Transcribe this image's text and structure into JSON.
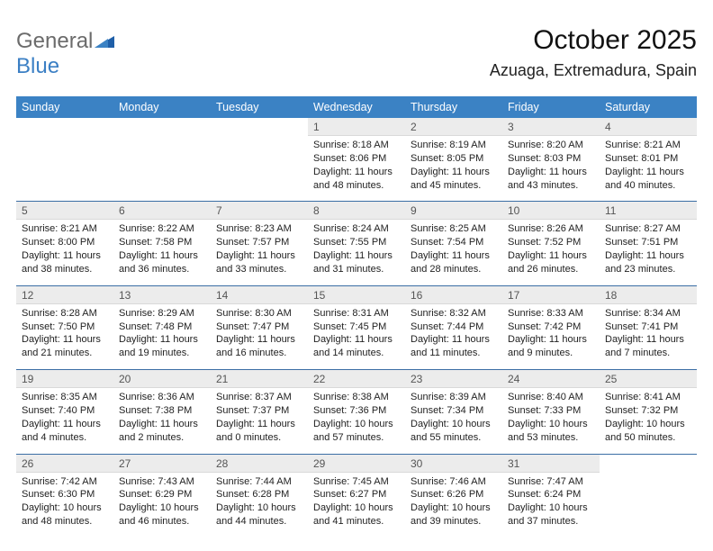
{
  "logo": {
    "word1": "General",
    "word2": "Blue"
  },
  "title": "October 2025",
  "location": "Azuaga, Extremadura, Spain",
  "colors": {
    "header_bg": "#3b82c4",
    "header_text": "#ffffff",
    "daynum_bg": "#ececec",
    "daynum_text": "#555555",
    "week_sep": "#3b6ea5",
    "logo_gray": "#6b6b6b",
    "logo_blue": "#3b7fc4"
  },
  "day_headers": [
    "Sunday",
    "Monday",
    "Tuesday",
    "Wednesday",
    "Thursday",
    "Friday",
    "Saturday"
  ],
  "weeks": [
    {
      "nums": [
        "",
        "",
        "",
        "1",
        "2",
        "3",
        "4"
      ],
      "cells": [
        null,
        null,
        null,
        {
          "sunrise": "Sunrise: 8:18 AM",
          "sunset": "Sunset: 8:06 PM",
          "day1": "Daylight: 11 hours",
          "day2": "and 48 minutes."
        },
        {
          "sunrise": "Sunrise: 8:19 AM",
          "sunset": "Sunset: 8:05 PM",
          "day1": "Daylight: 11 hours",
          "day2": "and 45 minutes."
        },
        {
          "sunrise": "Sunrise: 8:20 AM",
          "sunset": "Sunset: 8:03 PM",
          "day1": "Daylight: 11 hours",
          "day2": "and 43 minutes."
        },
        {
          "sunrise": "Sunrise: 8:21 AM",
          "sunset": "Sunset: 8:01 PM",
          "day1": "Daylight: 11 hours",
          "day2": "and 40 minutes."
        }
      ]
    },
    {
      "nums": [
        "5",
        "6",
        "7",
        "8",
        "9",
        "10",
        "11"
      ],
      "cells": [
        {
          "sunrise": "Sunrise: 8:21 AM",
          "sunset": "Sunset: 8:00 PM",
          "day1": "Daylight: 11 hours",
          "day2": "and 38 minutes."
        },
        {
          "sunrise": "Sunrise: 8:22 AM",
          "sunset": "Sunset: 7:58 PM",
          "day1": "Daylight: 11 hours",
          "day2": "and 36 minutes."
        },
        {
          "sunrise": "Sunrise: 8:23 AM",
          "sunset": "Sunset: 7:57 PM",
          "day1": "Daylight: 11 hours",
          "day2": "and 33 minutes."
        },
        {
          "sunrise": "Sunrise: 8:24 AM",
          "sunset": "Sunset: 7:55 PM",
          "day1": "Daylight: 11 hours",
          "day2": "and 31 minutes."
        },
        {
          "sunrise": "Sunrise: 8:25 AM",
          "sunset": "Sunset: 7:54 PM",
          "day1": "Daylight: 11 hours",
          "day2": "and 28 minutes."
        },
        {
          "sunrise": "Sunrise: 8:26 AM",
          "sunset": "Sunset: 7:52 PM",
          "day1": "Daylight: 11 hours",
          "day2": "and 26 minutes."
        },
        {
          "sunrise": "Sunrise: 8:27 AM",
          "sunset": "Sunset: 7:51 PM",
          "day1": "Daylight: 11 hours",
          "day2": "and 23 minutes."
        }
      ]
    },
    {
      "nums": [
        "12",
        "13",
        "14",
        "15",
        "16",
        "17",
        "18"
      ],
      "cells": [
        {
          "sunrise": "Sunrise: 8:28 AM",
          "sunset": "Sunset: 7:50 PM",
          "day1": "Daylight: 11 hours",
          "day2": "and 21 minutes."
        },
        {
          "sunrise": "Sunrise: 8:29 AM",
          "sunset": "Sunset: 7:48 PM",
          "day1": "Daylight: 11 hours",
          "day2": "and 19 minutes."
        },
        {
          "sunrise": "Sunrise: 8:30 AM",
          "sunset": "Sunset: 7:47 PM",
          "day1": "Daylight: 11 hours",
          "day2": "and 16 minutes."
        },
        {
          "sunrise": "Sunrise: 8:31 AM",
          "sunset": "Sunset: 7:45 PM",
          "day1": "Daylight: 11 hours",
          "day2": "and 14 minutes."
        },
        {
          "sunrise": "Sunrise: 8:32 AM",
          "sunset": "Sunset: 7:44 PM",
          "day1": "Daylight: 11 hours",
          "day2": "and 11 minutes."
        },
        {
          "sunrise": "Sunrise: 8:33 AM",
          "sunset": "Sunset: 7:42 PM",
          "day1": "Daylight: 11 hours",
          "day2": "and 9 minutes."
        },
        {
          "sunrise": "Sunrise: 8:34 AM",
          "sunset": "Sunset: 7:41 PM",
          "day1": "Daylight: 11 hours",
          "day2": "and 7 minutes."
        }
      ]
    },
    {
      "nums": [
        "19",
        "20",
        "21",
        "22",
        "23",
        "24",
        "25"
      ],
      "cells": [
        {
          "sunrise": "Sunrise: 8:35 AM",
          "sunset": "Sunset: 7:40 PM",
          "day1": "Daylight: 11 hours",
          "day2": "and 4 minutes."
        },
        {
          "sunrise": "Sunrise: 8:36 AM",
          "sunset": "Sunset: 7:38 PM",
          "day1": "Daylight: 11 hours",
          "day2": "and 2 minutes."
        },
        {
          "sunrise": "Sunrise: 8:37 AM",
          "sunset": "Sunset: 7:37 PM",
          "day1": "Daylight: 11 hours",
          "day2": "and 0 minutes."
        },
        {
          "sunrise": "Sunrise: 8:38 AM",
          "sunset": "Sunset: 7:36 PM",
          "day1": "Daylight: 10 hours",
          "day2": "and 57 minutes."
        },
        {
          "sunrise": "Sunrise: 8:39 AM",
          "sunset": "Sunset: 7:34 PM",
          "day1": "Daylight: 10 hours",
          "day2": "and 55 minutes."
        },
        {
          "sunrise": "Sunrise: 8:40 AM",
          "sunset": "Sunset: 7:33 PM",
          "day1": "Daylight: 10 hours",
          "day2": "and 53 minutes."
        },
        {
          "sunrise": "Sunrise: 8:41 AM",
          "sunset": "Sunset: 7:32 PM",
          "day1": "Daylight: 10 hours",
          "day2": "and 50 minutes."
        }
      ]
    },
    {
      "nums": [
        "26",
        "27",
        "28",
        "29",
        "30",
        "31",
        ""
      ],
      "cells": [
        {
          "sunrise": "Sunrise: 7:42 AM",
          "sunset": "Sunset: 6:30 PM",
          "day1": "Daylight: 10 hours",
          "day2": "and 48 minutes."
        },
        {
          "sunrise": "Sunrise: 7:43 AM",
          "sunset": "Sunset: 6:29 PM",
          "day1": "Daylight: 10 hours",
          "day2": "and 46 minutes."
        },
        {
          "sunrise": "Sunrise: 7:44 AM",
          "sunset": "Sunset: 6:28 PM",
          "day1": "Daylight: 10 hours",
          "day2": "and 44 minutes."
        },
        {
          "sunrise": "Sunrise: 7:45 AM",
          "sunset": "Sunset: 6:27 PM",
          "day1": "Daylight: 10 hours",
          "day2": "and 41 minutes."
        },
        {
          "sunrise": "Sunrise: 7:46 AM",
          "sunset": "Sunset: 6:26 PM",
          "day1": "Daylight: 10 hours",
          "day2": "and 39 minutes."
        },
        {
          "sunrise": "Sunrise: 7:47 AM",
          "sunset": "Sunset: 6:24 PM",
          "day1": "Daylight: 10 hours",
          "day2": "and 37 minutes."
        },
        null
      ]
    }
  ]
}
